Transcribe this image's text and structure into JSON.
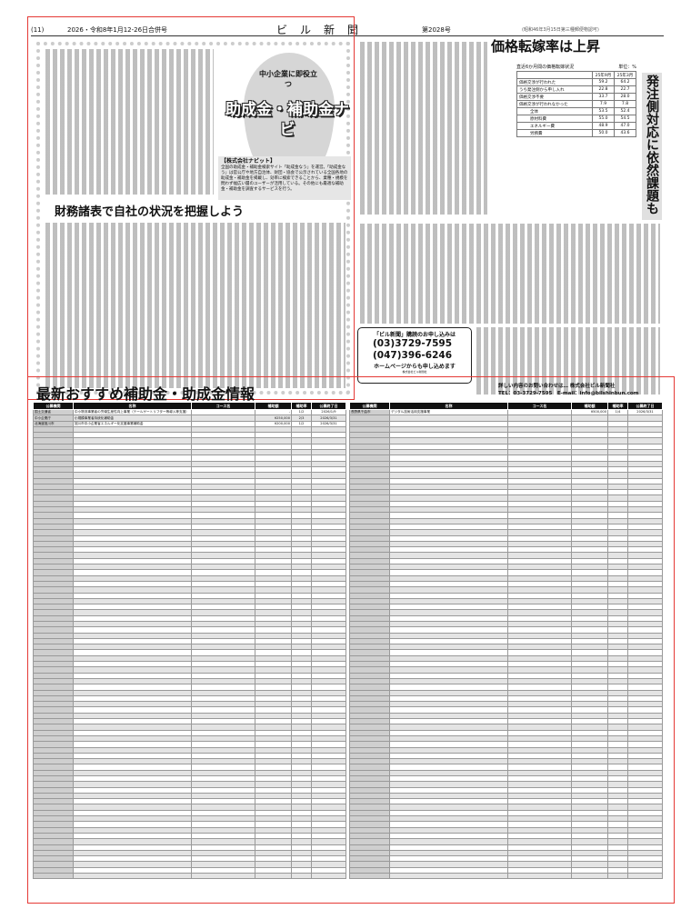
{
  "header": {
    "page": "(11)",
    "date": "2026・令和8年1月12-26日合併号",
    "paper_name": "ビル新聞",
    "issue": "第2028号",
    "note": "(昭和46年3月15日第三種郵便物認可)"
  },
  "feature": {
    "logo_sub": "中小企業に即役立つ",
    "logo_main": "助成金・補助金ナビ",
    "info_title": "【株式会社ナビット】",
    "info_body": "全国の助成金・補助金検索サイト「助成金なう」を運営。「助成金なう」は官公庁や地方自治体、財団・協会で公示されている全国各地の助成金・補助金を掲載し、効率に検索できることから、業種・規模を問わず幅広い層のユーザーが活用している。その他にも最適な補助金・補助金を調査するサービスを行う。",
    "subheading": "財務諸表で自社の状況を把握しよう"
  },
  "article": {
    "headline": "価格転嫁率は上昇",
    "side_headline": "発注側対応に依然課題も",
    "table": {
      "caption": "直近6か月間の価格転嫁状況",
      "unit": "単位：%",
      "cols": [
        "25年9月",
        "25年3月"
      ],
      "rows": [
        [
          "価格交渉が行われた",
          "59.2",
          "64.2"
        ],
        [
          "うち発注側から申し入れ",
          "22.8",
          "22.7"
        ],
        [
          "価格交渉不要",
          "33.7",
          "28.0"
        ],
        [
          "価格交渉が行われなかった",
          "7.9",
          "7.8"
        ],
        [
          "全体",
          "53.5",
          "52.4"
        ],
        [
          "原材料費",
          "55.0",
          "54.5"
        ],
        [
          "エネルギー費",
          "48.9",
          "47.0"
        ],
        [
          "労務費",
          "50.0",
          "43.6"
        ]
      ],
      "group_label": "転嫁率"
    }
  },
  "ad": {
    "title": "「ビル新聞」購読のお申し込みは",
    "tel": "(03)3729-7595",
    "fax": "(047)396-6246",
    "web": "ホームページからも申し込めます",
    "company": "株式会社ビル新聞社"
  },
  "subsidy": {
    "title": "最新おすすめ補助金・助成金情報",
    "contact_line": "詳しい内容のお問い合わせは… 株式会社ビル新聞社",
    "contact_tel": "TEL：03-3729-7595　E-mail：info@bilshinbun.com",
    "columns": [
      "公募機関",
      "名称",
      "コース名",
      "補助額",
      "補助率",
      "公募終了日"
    ],
    "left_rows": [
      [
        "国土交通省",
        "中小物流事業者の労働生産性向上事業（テールゲートリフター等導入等支援）",
        "",
        "-",
        "1/2",
        "2026/1/9"
      ],
      [
        "中小企業庁",
        "小規模事業者持続化補助金",
        "",
        "¥250,000",
        "2/3",
        "2026/3/31"
      ],
      [
        "北海道旭川市",
        "旭川市中小企業省エネルギー化支援事業補助金",
        "",
        "¥200,000",
        "1/2",
        "2026/3/31"
      ]
    ],
    "right_rows": [
      [
        "長野県千曲市",
        "デジタル技術活用支援事業",
        "",
        "¥500,000",
        "1/4",
        "2026/3/31"
      ]
    ]
  }
}
